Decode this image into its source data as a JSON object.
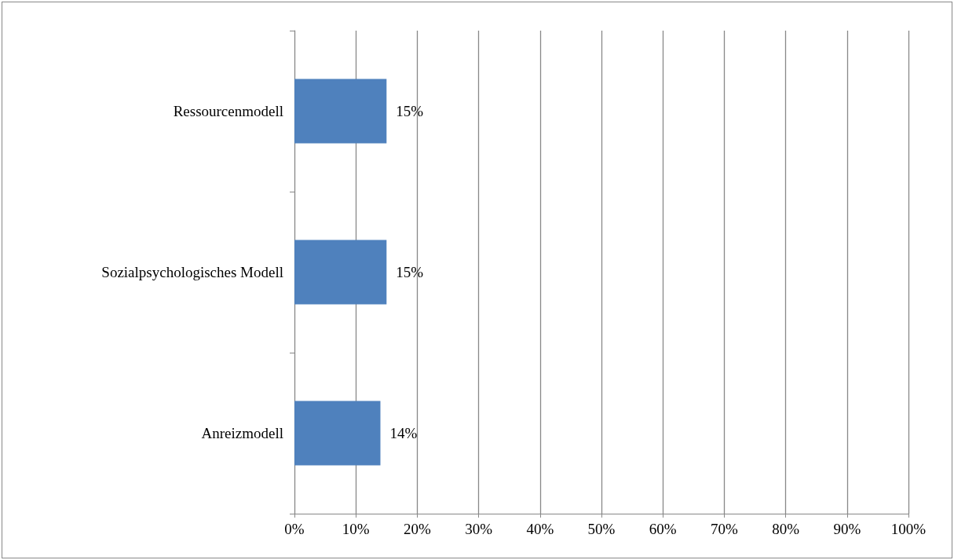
{
  "chart_data": {
    "type": "bar",
    "orientation": "horizontal",
    "categories": [
      "Ressourcenmodell",
      "Sozialpsychologisches Modell",
      "Anreizmodell"
    ],
    "values": [
      15,
      15,
      14
    ],
    "color": "#4f81bd",
    "value_labels": [
      "15%",
      "15%",
      "14%"
    ],
    "xlim": [
      0,
      100
    ],
    "xticks": [
      {
        "value": 0,
        "label": "0%"
      },
      {
        "value": 10,
        "label": "10%"
      },
      {
        "value": 20,
        "label": "20%"
      },
      {
        "value": 30,
        "label": "30%"
      },
      {
        "value": 40,
        "label": "40%"
      },
      {
        "value": 50,
        "label": "50%"
      },
      {
        "value": 60,
        "label": "60%"
      },
      {
        "value": 70,
        "label": "70%"
      },
      {
        "value": 80,
        "label": "80%"
      },
      {
        "value": 90,
        "label": "90%"
      },
      {
        "value": 100,
        "label": "100%"
      }
    ],
    "grid": "x"
  }
}
